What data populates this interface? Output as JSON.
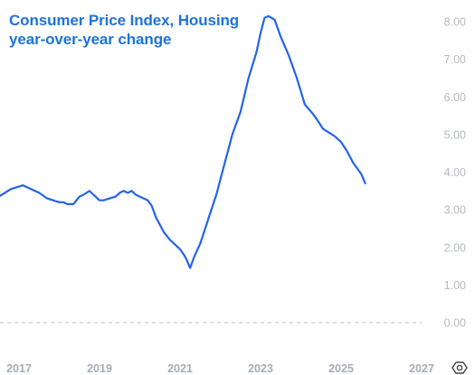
{
  "chart_data": {
    "type": "line",
    "title": "Consumer Price Index, Housing",
    "subtitle": "year-over-year change",
    "xlim": [
      2016.5,
      2027
    ],
    "ylim": [
      -0.4,
      8.3
    ],
    "y_ticks": [
      0,
      1,
      2,
      3,
      4,
      5,
      6,
      7,
      8
    ],
    "y_tick_labels": [
      "0.00",
      "1.00",
      "2.00",
      "3.00",
      "4.00",
      "5.00",
      "6.00",
      "7.00",
      "8.00"
    ],
    "x_ticks": [
      2017,
      2019,
      2021,
      2023,
      2025,
      2027
    ],
    "x_tick_labels": [
      "2017",
      "2019",
      "2021",
      "2023",
      "2025",
      "2027"
    ],
    "zero_line": true,
    "line_color": "#2563eb",
    "series": [
      {
        "x": [
          2016.5,
          2016.65,
          2016.8,
          2016.95,
          2017.1,
          2017.3,
          2017.5,
          2017.7,
          2017.85,
          2018.0,
          2018.1,
          2018.2,
          2018.35,
          2018.5,
          2018.6,
          2018.75,
          2018.9,
          2019.0,
          2019.1,
          2019.25,
          2019.4,
          2019.5,
          2019.6,
          2019.7,
          2019.8,
          2019.9,
          2020.0,
          2020.1,
          2020.2,
          2020.3,
          2020.4,
          2020.5,
          2020.6,
          2020.75,
          2020.9,
          2021.0,
          2021.1,
          2021.15,
          2021.25,
          2021.35,
          2021.5,
          2021.7,
          2021.9,
          2022.1,
          2022.3,
          2022.5,
          2022.7,
          2022.9,
          2023.0,
          2023.1,
          2023.2,
          2023.35,
          2023.5,
          2023.7,
          2023.9,
          2024.1,
          2024.3,
          2024.4,
          2024.55,
          2024.7,
          2024.85,
          2025.0,
          2025.15,
          2025.3,
          2025.5,
          2025.6
        ],
        "y": [
          3.35,
          3.45,
          3.55,
          3.6,
          3.65,
          3.55,
          3.45,
          3.3,
          3.25,
          3.2,
          3.2,
          3.15,
          3.15,
          3.35,
          3.4,
          3.5,
          3.35,
          3.25,
          3.25,
          3.3,
          3.35,
          3.45,
          3.5,
          3.45,
          3.5,
          3.4,
          3.35,
          3.3,
          3.25,
          3.1,
          2.8,
          2.6,
          2.4,
          2.2,
          2.05,
          1.95,
          1.8,
          1.7,
          1.45,
          1.75,
          2.1,
          2.75,
          3.4,
          4.2,
          5.0,
          5.6,
          6.5,
          7.2,
          7.7,
          8.1,
          8.15,
          8.05,
          7.6,
          7.1,
          6.5,
          5.8,
          5.55,
          5.4,
          5.15,
          5.05,
          4.95,
          4.8,
          4.55,
          4.25,
          3.95,
          3.7
        ]
      }
    ]
  }
}
